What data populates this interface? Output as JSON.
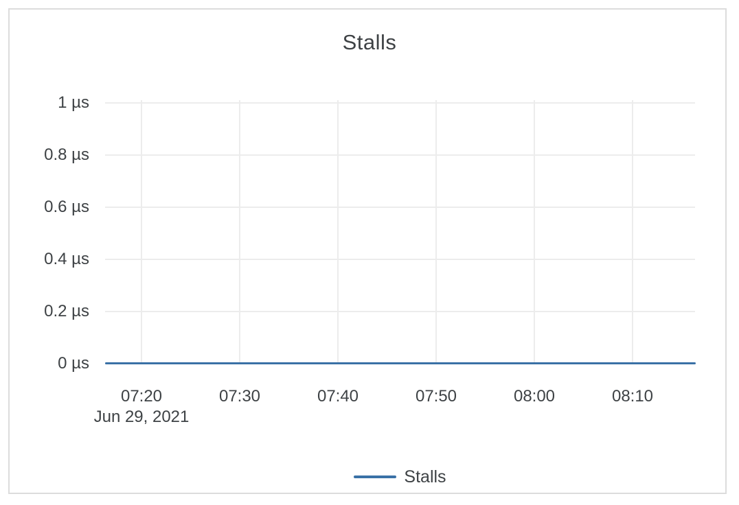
{
  "card": {
    "background": "#ffffff",
    "border_color": "#dcdcdc"
  },
  "colors": {
    "text": "#3e4245",
    "grid": "#ececec",
    "series_blue": "#3a71a6"
  },
  "chart_data": {
    "type": "line",
    "title": "Stalls",
    "xlabel": "",
    "ylabel": "",
    "y_unit": "µs",
    "ylim": [
      0,
      1
    ],
    "grid": true,
    "y_tick_labels": [
      "1 µs",
      "0.8 µs",
      "0.6 µs",
      "0.4 µs",
      "0.2 µs",
      "0 µs"
    ],
    "y_tick_values": [
      1,
      0.8,
      0.6,
      0.4,
      0.2,
      0
    ],
    "x_tick_labels": [
      "07:20",
      "07:30",
      "07:40",
      "07:50",
      "08:00",
      "08:10"
    ],
    "x_date_label": "Jun 29, 2021",
    "legend": {
      "position": "bottom",
      "entries": [
        {
          "label": "Stalls",
          "color": "#3a71a6"
        }
      ]
    },
    "series": [
      {
        "name": "Stalls",
        "color": "#3a71a6",
        "x": [
          "07:20",
          "07:30",
          "07:40",
          "07:50",
          "08:00",
          "08:10"
        ],
        "values": [
          0,
          0,
          0,
          0,
          0,
          0
        ],
        "constant_value": 0
      }
    ]
  }
}
